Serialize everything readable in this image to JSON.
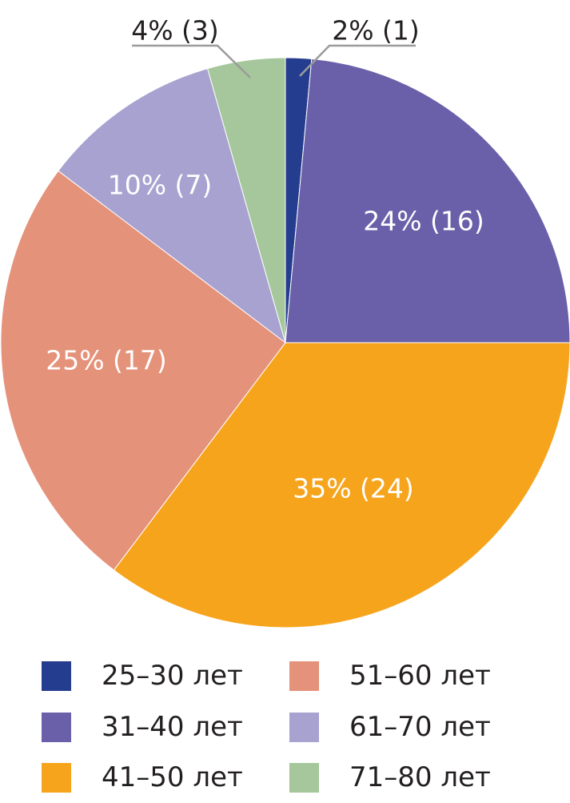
{
  "chart_data": {
    "type": "pie",
    "slices": [
      {
        "category": "25–30 лет",
        "value": 1,
        "label": "2% (1)",
        "color": "#243d8e"
      },
      {
        "category": "31–40 лет",
        "value": 16,
        "label": "24% (16)",
        "color": "#6a60aa"
      },
      {
        "category": "41–50 лет",
        "value": 24,
        "label": "35% (24)",
        "color": "#f7a41d"
      },
      {
        "category": "51–60 лет",
        "value": 17,
        "label": "25% (17)",
        "color": "#e5927a"
      },
      {
        "category": "61–70 лет",
        "value": 7,
        "label": "10% (7)",
        "color": "#a8a2d0"
      },
      {
        "category": "71–80 лет",
        "value": 3,
        "label": "4% (3)",
        "color": "#a5c79b"
      }
    ],
    "start_angle": "top",
    "direction": "clockwise",
    "legend_position": "bottom"
  },
  "legend": {
    "items": [
      {
        "label": "25–30 лет",
        "color": "#243d8e"
      },
      {
        "label": "31–40 лет",
        "color": "#6a60aa"
      },
      {
        "label": "41–50 лет",
        "color": "#f7a41d"
      },
      {
        "label": "51–60 лет",
        "color": "#e5927a"
      },
      {
        "label": "61–70 лет",
        "color": "#a8a2d0"
      },
      {
        "label": "71–80 лет",
        "color": "#a5c79b"
      }
    ]
  }
}
